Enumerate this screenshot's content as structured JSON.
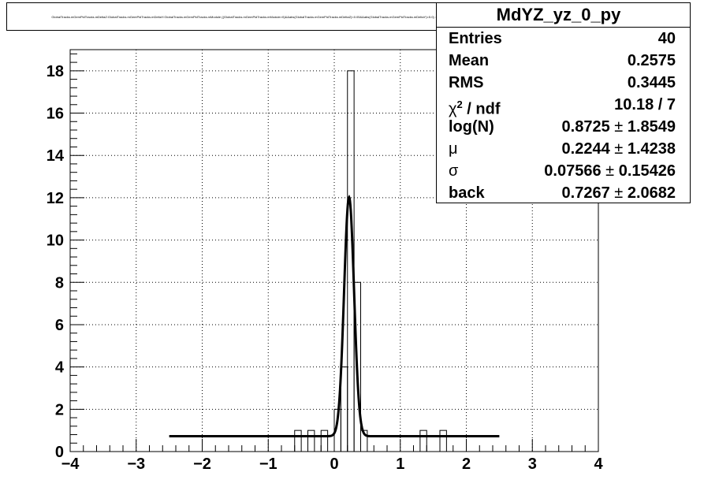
{
  "title": "GlobalTracks.mGemPidTracks.mDeltaZ:GlobalTracks.mGemPidTracks.mDeltaY:GlobalTracks.mGemPidTracks.mModule {(GlobalTracks.mGemPidTracks.mModule>0)&&abs(GlobalTracks.mGemPidTracks.mDeltaZ)<0.05&&abs(GlobalTracks.mGemPidTracks.mDeltaY)<5.0} : yz projection",
  "stats": {
    "name": "MdYZ_yz_0_py",
    "rows": [
      {
        "label": "Entries",
        "value": "40"
      },
      {
        "label": "Mean",
        "value": "0.2575"
      },
      {
        "label": "RMS",
        "value": "0.3445"
      },
      {
        "label_base": "χ",
        "label_sup": "2",
        "label_tail": " / ndf",
        "value": "10.18 / 7"
      },
      {
        "label": "log(N)",
        "value": "0.8725",
        "pm": "±",
        "err": "1.8549"
      },
      {
        "label": "μ",
        "value": "0.2244",
        "pm": "±",
        "err": "1.4238"
      },
      {
        "label": "σ",
        "value": "0.07566",
        "pm": "±",
        "err": "0.15426"
      },
      {
        "label": "back",
        "value": "0.7267",
        "pm": "±",
        "err": "2.0682"
      }
    ]
  },
  "chart_data": {
    "type": "bar",
    "xlim": [
      -4,
      4
    ],
    "ylim": [
      0,
      19
    ],
    "x_ticks": [
      -4,
      -3,
      -2,
      -1,
      0,
      1,
      2,
      3,
      4
    ],
    "x_tick_labels": [
      "−4",
      "−3",
      "−2",
      "−1",
      "0",
      "1",
      "2",
      "3",
      "4"
    ],
    "y_ticks": [
      0,
      2,
      4,
      6,
      8,
      10,
      12,
      14,
      16,
      18
    ],
    "y_tick_labels": [
      "0",
      "2",
      "4",
      "6",
      "8",
      "10",
      "12",
      "14",
      "16",
      "18"
    ],
    "grid": true,
    "bin_width": 0.1,
    "bins": [
      {
        "x": -0.6,
        "y": 1
      },
      {
        "x": -0.4,
        "y": 1
      },
      {
        "x": -0.2,
        "y": 1
      },
      {
        "x": 0.0,
        "y": 2
      },
      {
        "x": 0.1,
        "y": 4
      },
      {
        "x": 0.2,
        "y": 18
      },
      {
        "x": 0.3,
        "y": 8
      },
      {
        "x": 0.4,
        "y": 1
      },
      {
        "x": 1.3,
        "y": 1
      },
      {
        "x": 1.6,
        "y": 1
      }
    ],
    "fit": {
      "function": "gaus+pol0",
      "amplitude": 11.3,
      "mean": 0.2244,
      "sigma": 0.07566,
      "background": 0.7267,
      "x_range": [
        -2.5,
        2.5
      ]
    },
    "colors": {
      "axes": "#000000",
      "grid": "#000000",
      "fit": "#000000"
    }
  }
}
